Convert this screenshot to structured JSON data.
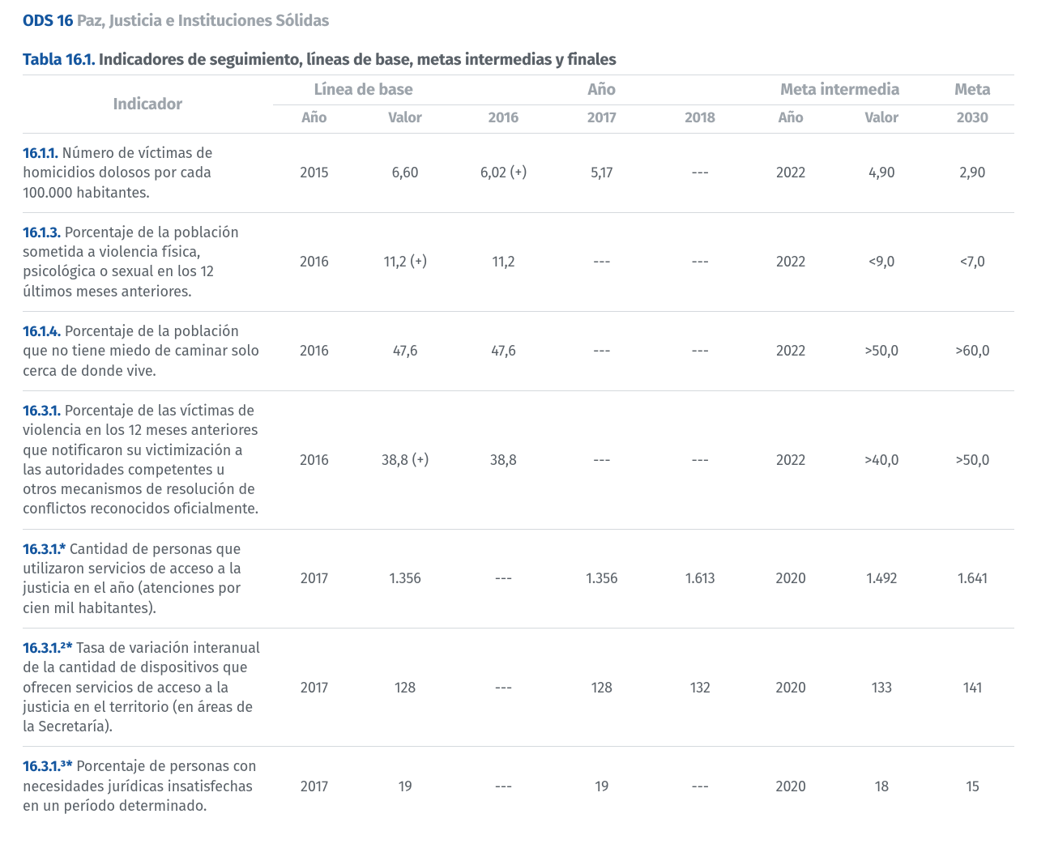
{
  "colors": {
    "blue": "#14569f",
    "grey_header": "#9da4ab",
    "grey_text": "#5a6168",
    "row_border": "#d5d9dd",
    "background": "#ffffff"
  },
  "header": {
    "ods_code": "ODS 16",
    "ods_title": "Paz, Justicia e Instituciones Sólidas"
  },
  "table": {
    "title_number": "Tabla 16.1.",
    "title_text": "Indicadores de seguimiento, líneas de base, metas intermedias y finales",
    "group_headers": {
      "indicador": "Indicador",
      "linea_base": "Línea de base",
      "anio": "Año",
      "meta_intermedia": "Meta intermedia",
      "meta": "Meta"
    },
    "sub_headers": {
      "lb_anio": "Año",
      "lb_valor": "Valor",
      "y2016": "2016",
      "y2017": "2017",
      "y2018": "2018",
      "mi_anio": "Año",
      "mi_valor": "Valor",
      "meta_2030": "2030"
    },
    "rows": [
      {
        "code": "16.1.1.",
        "desc": "Número de víctimas de homicidios dolosos por cada 100.000 habitantes.",
        "lb_anio": "2015",
        "lb_valor": "6,60",
        "y2016": "6,02 (+)",
        "y2017": "5,17",
        "y2018": "---",
        "mi_anio": "2022",
        "mi_valor": "4,90",
        "meta_2030": "2,90"
      },
      {
        "code": "16.1.3.",
        "desc": "Porcentaje de la población sometida a violencia física, psicológica o sexual en los 12 últimos meses anteriores.",
        "lb_anio": "2016",
        "lb_valor": "11,2 (+)",
        "y2016": "11,2",
        "y2017": "---",
        "y2018": "---",
        "mi_anio": "2022",
        "mi_valor": "<9,0",
        "meta_2030": "<7,0"
      },
      {
        "code": "16.1.4.",
        "desc": "Porcentaje de la población que no tiene miedo de caminar solo cerca de donde vive.",
        "lb_anio": "2016",
        "lb_valor": "47,6",
        "y2016": "47,6",
        "y2017": "---",
        "y2018": "---",
        "mi_anio": "2022",
        "mi_valor": ">50,0",
        "meta_2030": ">60,0"
      },
      {
        "code": "16.3.1.",
        "desc": "Porcentaje de las víctimas de violencia en los 12 meses anteriores que notificaron su victimización a las autoridades competentes u otros mecanismos de resolución de conflictos reconocidos oficialmente.",
        "lb_anio": "2016",
        "lb_valor": "38,8 (+)",
        "y2016": "38,8",
        "y2017": "---",
        "y2018": "---",
        "mi_anio": "2022",
        "mi_valor": ">40,0",
        "meta_2030": ">50,0"
      },
      {
        "code": "16.3.1.*",
        "desc": "Cantidad de personas que utilizaron servicios de acceso a la justicia en el año (atenciones por cien mil habitantes).",
        "lb_anio": "2017",
        "lb_valor": "1.356",
        "y2016": "---",
        "y2017": "1.356",
        "y2018": "1.613",
        "mi_anio": "2020",
        "mi_valor": "1.492",
        "meta_2030": "1.641"
      },
      {
        "code": "16.3.1.²*",
        "desc": "Tasa de variación interanual de la cantidad de dispositivos que ofrecen servicios de acceso a la justicia en el territorio (en áreas de la Secretaría).",
        "lb_anio": "2017",
        "lb_valor": "128",
        "y2016": "---",
        "y2017": "128",
        "y2018": "132",
        "mi_anio": "2020",
        "mi_valor": "133",
        "meta_2030": "141"
      },
      {
        "code": "16.3.1.³*",
        "desc": "Porcentaje de personas con necesidades jurídicas insatisfechas en un período determinado.",
        "lb_anio": "2017",
        "lb_valor": "19",
        "y2016": "---",
        "y2017": "19",
        "y2018": "---",
        "mi_anio": "2020",
        "mi_valor": "18",
        "meta_2030": "15"
      }
    ]
  }
}
